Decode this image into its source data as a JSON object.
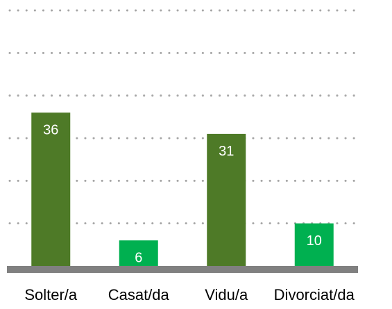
{
  "chart_data": {
    "type": "bar",
    "categories": [
      "Solter/a",
      "Casat/da",
      "Vidu/a",
      "Divorciat/da"
    ],
    "values": [
      36,
      6,
      31,
      10
    ],
    "colors": [
      "#4e7a27",
      "#00b050",
      "#4e7a27",
      "#00b050"
    ],
    "axis_color": "#808080",
    "ylim": [
      0,
      60
    ],
    "yticks": [
      0,
      10,
      20,
      30,
      40,
      50,
      60
    ],
    "grid": true
  }
}
